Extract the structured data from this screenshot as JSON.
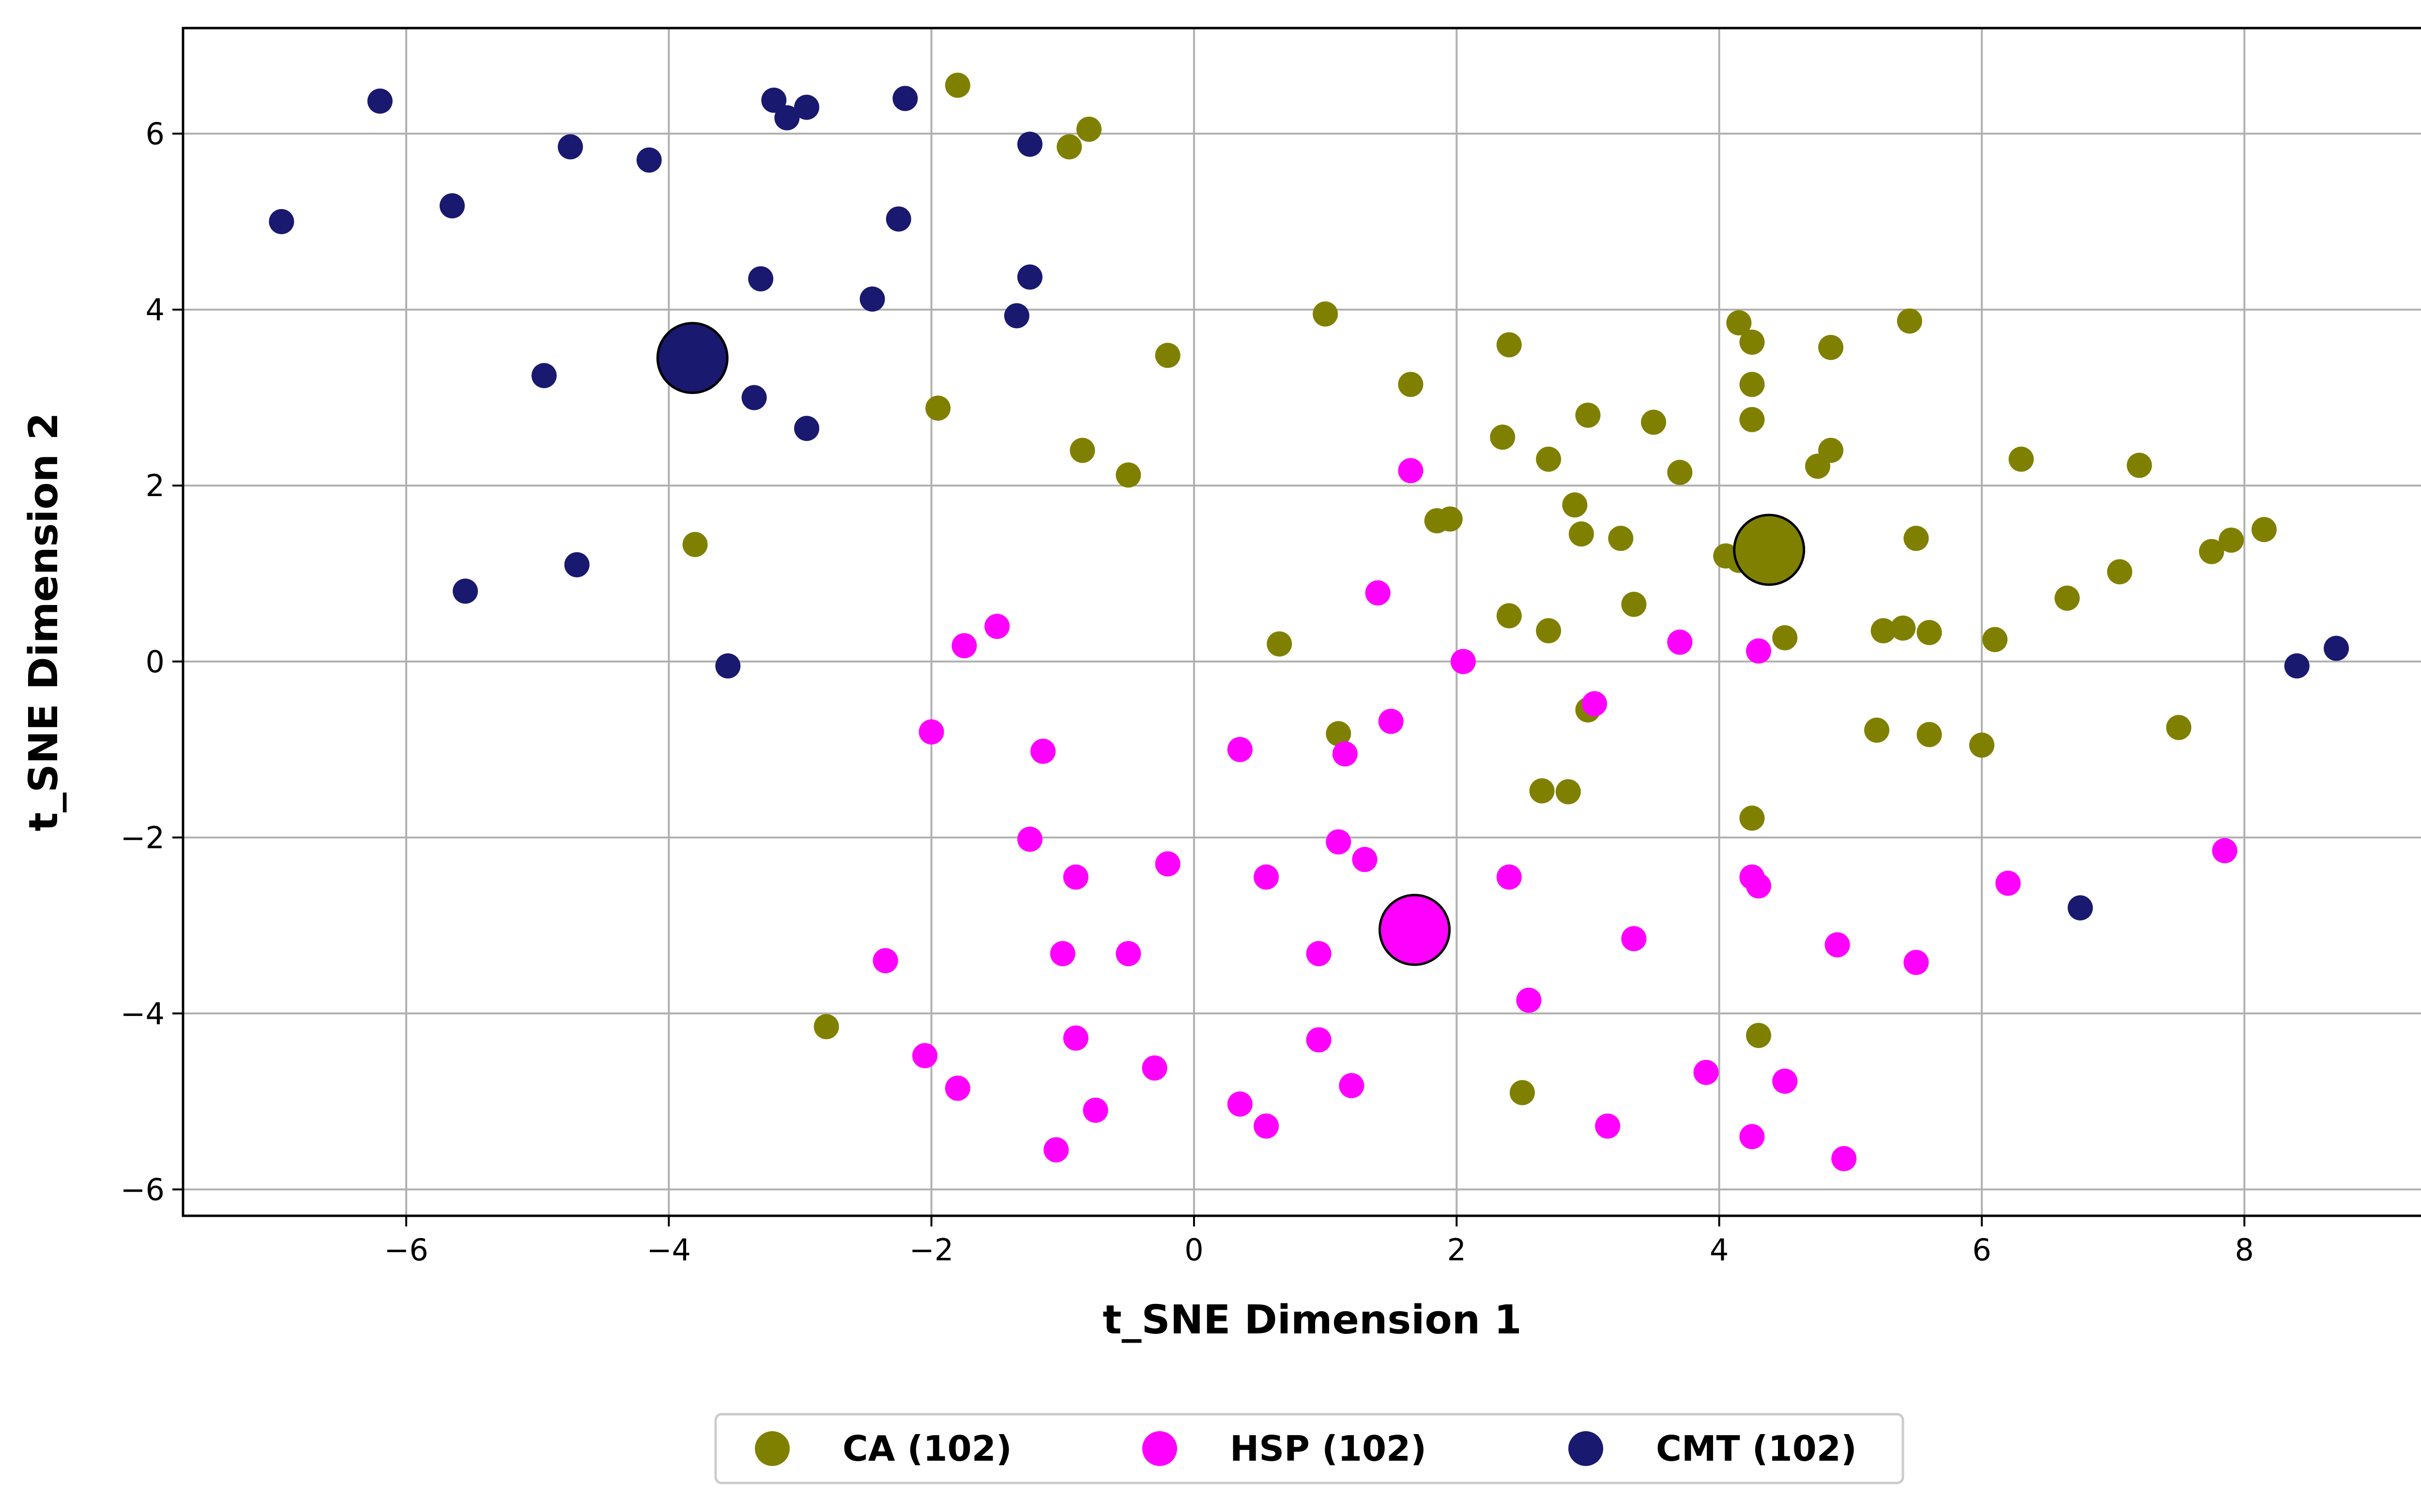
{
  "chart_data": {
    "type": "scatter",
    "xlabel": "t_SNE Dimension 1",
    "ylabel": "t_SNE Dimension 2",
    "xlim": [
      -7.7,
      9.5
    ],
    "ylim": [
      -6.3,
      7.2
    ],
    "xticks": [
      -6,
      -4,
      -2,
      0,
      2,
      4,
      6,
      8
    ],
    "yticks": [
      -6,
      -4,
      -2,
      0,
      2,
      4,
      6
    ],
    "grid": true,
    "legend_position": "below-center",
    "series": [
      {
        "name": "CA (102)",
        "color": "#808000",
        "points": [
          [
            -1.8,
            6.55
          ],
          [
            -0.95,
            5.85
          ],
          [
            -0.8,
            6.05
          ],
          [
            1.0,
            3.95
          ],
          [
            -0.2,
            3.48
          ],
          [
            -1.95,
            2.88
          ],
          [
            -0.85,
            2.4
          ],
          [
            -0.5,
            2.12
          ],
          [
            -3.8,
            1.33
          ],
          [
            -2.8,
            -4.15
          ],
          [
            0.65,
            0.2
          ],
          [
            1.1,
            -0.82
          ],
          [
            1.65,
            3.15
          ],
          [
            1.85,
            1.6
          ],
          [
            1.95,
            1.62
          ],
          [
            2.4,
            3.6
          ],
          [
            2.35,
            2.55
          ],
          [
            2.7,
            2.3
          ],
          [
            3.0,
            2.8
          ],
          [
            2.9,
            1.78
          ],
          [
            2.95,
            1.45
          ],
          [
            3.25,
            1.4
          ],
          [
            3.5,
            2.72
          ],
          [
            3.7,
            2.15
          ],
          [
            3.35,
            0.65
          ],
          [
            2.4,
            0.52
          ],
          [
            2.7,
            0.35
          ],
          [
            3.0,
            -0.55
          ],
          [
            2.65,
            -1.47
          ],
          [
            2.85,
            -1.48
          ],
          [
            2.5,
            -4.9
          ],
          [
            4.15,
            3.85
          ],
          [
            4.25,
            3.63
          ],
          [
            4.25,
            3.15
          ],
          [
            4.25,
            2.75
          ],
          [
            4.05,
            1.2
          ],
          [
            4.15,
            1.15
          ],
          [
            4.5,
            0.27
          ],
          [
            4.25,
            -1.78
          ],
          [
            4.3,
            -4.25
          ],
          [
            4.75,
            2.22
          ],
          [
            4.85,
            2.4
          ],
          [
            4.85,
            3.57
          ],
          [
            5.45,
            3.87
          ],
          [
            5.5,
            1.4
          ],
          [
            5.25,
            0.35
          ],
          [
            5.4,
            0.38
          ],
          [
            5.6,
            0.33
          ],
          [
            5.2,
            -0.78
          ],
          [
            5.6,
            -0.83
          ],
          [
            6.1,
            0.25
          ],
          [
            6.0,
            -0.95
          ],
          [
            6.3,
            2.3
          ],
          [
            6.65,
            0.72
          ],
          [
            7.05,
            1.02
          ],
          [
            7.2,
            2.23
          ],
          [
            7.75,
            1.25
          ],
          [
            7.9,
            1.38
          ],
          [
            8.15,
            1.5
          ],
          [
            7.5,
            -0.75
          ]
        ],
        "centroid": [
          4.38,
          1.27
        ]
      },
      {
        "name": "HSP (102)",
        "color": "#ff00ff",
        "points": [
          [
            1.65,
            2.17
          ],
          [
            1.4,
            0.78
          ],
          [
            2.05,
            0.0
          ],
          [
            1.5,
            -0.68
          ],
          [
            1.15,
            -1.05
          ],
          [
            0.35,
            -1.0
          ],
          [
            1.1,
            -2.05
          ],
          [
            1.3,
            -2.25
          ],
          [
            0.55,
            -2.45
          ],
          [
            0.95,
            -3.32
          ],
          [
            0.95,
            -4.3
          ],
          [
            1.2,
            -4.82
          ],
          [
            0.35,
            -5.03
          ],
          [
            0.55,
            -5.28
          ],
          [
            -1.5,
            0.4
          ],
          [
            -1.75,
            0.18
          ],
          [
            -2.0,
            -0.8
          ],
          [
            -1.15,
            -1.02
          ],
          [
            -1.25,
            -2.02
          ],
          [
            -0.9,
            -2.45
          ],
          [
            -0.2,
            -2.3
          ],
          [
            -1.0,
            -3.32
          ],
          [
            -0.5,
            -3.32
          ],
          [
            -2.35,
            -3.4
          ],
          [
            -0.9,
            -4.28
          ],
          [
            -0.3,
            -4.62
          ],
          [
            -2.05,
            -4.48
          ],
          [
            -1.8,
            -4.85
          ],
          [
            -0.75,
            -5.1
          ],
          [
            -1.05,
            -5.55
          ],
          [
            3.05,
            -0.48
          ],
          [
            3.7,
            0.22
          ],
          [
            4.3,
            0.12
          ],
          [
            2.4,
            -2.45
          ],
          [
            2.55,
            -3.85
          ],
          [
            3.35,
            -3.15
          ],
          [
            3.15,
            -5.28
          ],
          [
            3.9,
            -4.67
          ],
          [
            4.25,
            -2.45
          ],
          [
            4.3,
            -2.55
          ],
          [
            4.9,
            -3.22
          ],
          [
            5.5,
            -3.42
          ],
          [
            4.5,
            -4.77
          ],
          [
            4.25,
            -5.4
          ],
          [
            4.95,
            -5.65
          ],
          [
            6.2,
            -2.52
          ],
          [
            7.85,
            -2.15
          ]
        ],
        "centroid": [
          1.68,
          -3.05
        ]
      },
      {
        "name": "CMT (102)",
        "color": "#191970",
        "points": [
          [
            -6.95,
            5.0
          ],
          [
            -6.2,
            6.37
          ],
          [
            -5.65,
            5.18
          ],
          [
            -4.75,
            5.85
          ],
          [
            -4.15,
            5.7
          ],
          [
            -3.2,
            6.38
          ],
          [
            -3.1,
            6.18
          ],
          [
            -2.95,
            6.3
          ],
          [
            -2.2,
            6.4
          ],
          [
            -2.25,
            5.03
          ],
          [
            -1.25,
            5.88
          ],
          [
            -1.25,
            4.37
          ],
          [
            -1.35,
            3.93
          ],
          [
            -2.45,
            4.12
          ],
          [
            -3.3,
            4.35
          ],
          [
            -4.95,
            3.25
          ],
          [
            -3.35,
            3.0
          ],
          [
            -2.95,
            2.65
          ],
          [
            -4.7,
            1.1
          ],
          [
            -5.55,
            0.8
          ],
          [
            -3.55,
            -0.05
          ],
          [
            6.75,
            -2.8
          ],
          [
            8.4,
            -0.05
          ],
          [
            8.7,
            0.15
          ]
        ],
        "centroid": [
          -3.82,
          3.45
        ]
      }
    ]
  }
}
